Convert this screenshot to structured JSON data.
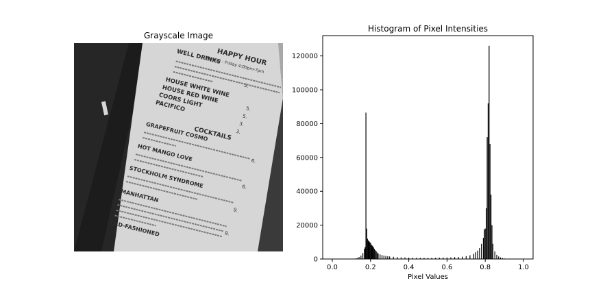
{
  "left_panel": {
    "title": "Grayscale Image",
    "photo_text": {
      "heading": "HAPPY HOUR",
      "hours": "Monday - Friday 4:00pm-7pm",
      "items": [
        {
          "name": "WELL DRINKS",
          "price": "5."
        },
        {
          "name": "HOUSE WHITE WINE",
          "price": "5."
        },
        {
          "name": "HOUSE RED WINE",
          "price": "5."
        },
        {
          "name": "COORS LIGHT",
          "price": "3."
        },
        {
          "name": "PACIFICO",
          "price": "3."
        }
      ],
      "section": "COCKTAILS",
      "cocktails": [
        {
          "name": "GRAPEFRUIT COSMO",
          "price": "6."
        },
        {
          "name": "HOT MANGO LOVE",
          "price": "6."
        },
        {
          "name": "STOCKHOLM SYNDROME",
          "price": "9."
        },
        {
          "name": "MANHATTAN",
          "price": "9."
        },
        {
          "name": "OLD-FASHIONED",
          "price": ""
        }
      ]
    }
  },
  "chart_data": {
    "type": "bar",
    "title": "Histogram of Pixel Intensities",
    "xlabel": "Pixel Values",
    "ylabel": "",
    "xlim": [
      -0.05,
      1.05
    ],
    "ylim": [
      0,
      132000
    ],
    "xticks": [
      "0.0",
      "0.2",
      "0.4",
      "0.6",
      "0.8",
      "1.0"
    ],
    "xtick_values": [
      0.0,
      0.2,
      0.4,
      0.6,
      0.8,
      1.0
    ],
    "yticks": [
      "0",
      "20000",
      "40000",
      "60000",
      "80000",
      "100000",
      "120000"
    ],
    "ytick_values": [
      0,
      20000,
      40000,
      60000,
      80000,
      100000,
      120000
    ],
    "bar_color": "#000000",
    "bin_width": 0.0039,
    "bins": [
      {
        "x": 0.12,
        "y": 300
      },
      {
        "x": 0.13,
        "y": 600
      },
      {
        "x": 0.14,
        "y": 1200
      },
      {
        "x": 0.15,
        "y": 2000
      },
      {
        "x": 0.16,
        "y": 3500
      },
      {
        "x": 0.168,
        "y": 6000
      },
      {
        "x": 0.172,
        "y": 7000
      },
      {
        "x": 0.176,
        "y": 86500
      },
      {
        "x": 0.18,
        "y": 18000
      },
      {
        "x": 0.184,
        "y": 12000
      },
      {
        "x": 0.188,
        "y": 11000
      },
      {
        "x": 0.192,
        "y": 10500
      },
      {
        "x": 0.196,
        "y": 10000
      },
      {
        "x": 0.2,
        "y": 9500
      },
      {
        "x": 0.204,
        "y": 8500
      },
      {
        "x": 0.208,
        "y": 8000
      },
      {
        "x": 0.212,
        "y": 7500
      },
      {
        "x": 0.216,
        "y": 6800
      },
      {
        "x": 0.22,
        "y": 6000
      },
      {
        "x": 0.225,
        "y": 5200
      },
      {
        "x": 0.23,
        "y": 4500
      },
      {
        "x": 0.235,
        "y": 3800
      },
      {
        "x": 0.24,
        "y": 3200
      },
      {
        "x": 0.25,
        "y": 2700
      },
      {
        "x": 0.26,
        "y": 2300
      },
      {
        "x": 0.27,
        "y": 2000
      },
      {
        "x": 0.28,
        "y": 1800
      },
      {
        "x": 0.29,
        "y": 1600
      },
      {
        "x": 0.3,
        "y": 1500
      },
      {
        "x": 0.32,
        "y": 1300
      },
      {
        "x": 0.34,
        "y": 1100
      },
      {
        "x": 0.36,
        "y": 1000
      },
      {
        "x": 0.38,
        "y": 900
      },
      {
        "x": 0.4,
        "y": 800
      },
      {
        "x": 0.42,
        "y": 750
      },
      {
        "x": 0.44,
        "y": 700
      },
      {
        "x": 0.46,
        "y": 700
      },
      {
        "x": 0.48,
        "y": 650
      },
      {
        "x": 0.5,
        "y": 700
      },
      {
        "x": 0.52,
        "y": 700
      },
      {
        "x": 0.54,
        "y": 750
      },
      {
        "x": 0.56,
        "y": 800
      },
      {
        "x": 0.58,
        "y": 850
      },
      {
        "x": 0.6,
        "y": 900
      },
      {
        "x": 0.62,
        "y": 1000
      },
      {
        "x": 0.64,
        "y": 1100
      },
      {
        "x": 0.66,
        "y": 1200
      },
      {
        "x": 0.68,
        "y": 1400
      },
      {
        "x": 0.7,
        "y": 1700
      },
      {
        "x": 0.72,
        "y": 2200
      },
      {
        "x": 0.74,
        "y": 3000
      },
      {
        "x": 0.75,
        "y": 4000
      },
      {
        "x": 0.76,
        "y": 5000
      },
      {
        "x": 0.77,
        "y": 6500
      },
      {
        "x": 0.78,
        "y": 9000
      },
      {
        "x": 0.79,
        "y": 12500
      },
      {
        "x": 0.795,
        "y": 17500
      },
      {
        "x": 0.8,
        "y": 18000
      },
      {
        "x": 0.805,
        "y": 30000
      },
      {
        "x": 0.81,
        "y": 72000
      },
      {
        "x": 0.815,
        "y": 92000
      },
      {
        "x": 0.82,
        "y": 126000
      },
      {
        "x": 0.825,
        "y": 68000
      },
      {
        "x": 0.83,
        "y": 38000
      },
      {
        "x": 0.835,
        "y": 20000
      },
      {
        "x": 0.84,
        "y": 9000
      },
      {
        "x": 0.85,
        "y": 4500
      },
      {
        "x": 0.86,
        "y": 2500
      },
      {
        "x": 0.87,
        "y": 1500
      },
      {
        "x": 0.88,
        "y": 900
      },
      {
        "x": 0.89,
        "y": 500
      },
      {
        "x": 0.9,
        "y": 300
      },
      {
        "x": 0.92,
        "y": 150
      }
    ],
    "grid": false,
    "legend": "none"
  }
}
